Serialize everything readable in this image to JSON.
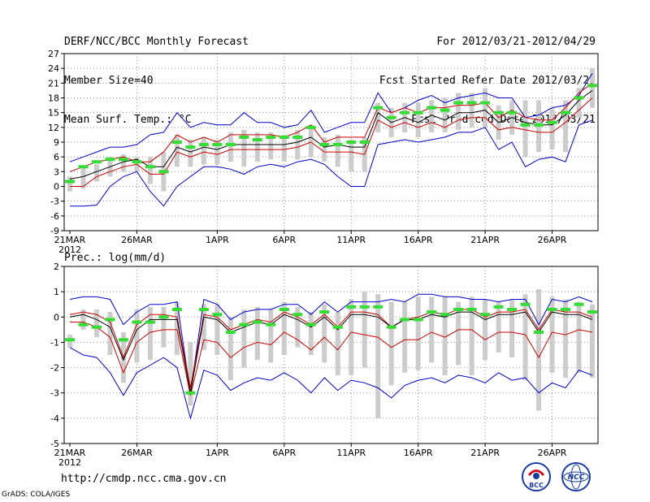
{
  "header": {
    "left": [
      "DERF/NCC/BCC Monthly Forecast",
      "Member Size=40",
      "Mean Surf. Temp.: °C"
    ],
    "right": [
      "For 2012/03/21-2012/04/29",
      "Fcst Started Refer Date 2012/03/20",
      "Fcst Produced Date 2012/03/21"
    ]
  },
  "footer": {
    "url": "http://cmdp.ncc.cma.gov.cn",
    "grads": "GrADS: COLA/IGES",
    "logo_bcc": "BCC",
    "logo_ncc": "NCC"
  },
  "colors": {
    "max_min": "#0000cc",
    "mean": "#000000",
    "band": "#cc0000",
    "box": "#cccccc",
    "obs": "#33dd33",
    "grid": "#888888"
  },
  "chart_data": [
    {
      "type": "line",
      "title": "Mean Surf. Temp.: °C",
      "xlabel": "",
      "ylabel": "",
      "days": 40,
      "ylim": [
        -9,
        27
      ],
      "yticks": [
        -9,
        -6,
        -3,
        0,
        3,
        6,
        9,
        12,
        15,
        18,
        21,
        24,
        27
      ],
      "xtick_labels": [
        {
          "day": 1,
          "label": "21MAR"
        },
        {
          "day": 6,
          "label": "26MAR"
        },
        {
          "day": 12,
          "label": "1APR"
        },
        {
          "day": 17,
          "label": "6APR"
        },
        {
          "day": 22,
          "label": "11APR"
        },
        {
          "day": 27,
          "label": "16APR"
        },
        {
          "day": 32,
          "label": "21APR"
        },
        {
          "day": 37,
          "label": "26APR"
        }
      ],
      "year_label": "2012",
      "max": [
        5,
        6,
        7,
        8,
        8,
        8.5,
        10.5,
        11,
        15,
        12,
        13,
        12.5,
        12.5,
        15,
        13,
        13,
        12,
        12.5,
        15.5,
        11,
        12,
        13,
        13,
        19,
        15,
        16,
        17.5,
        18.5,
        17,
        18,
        18.5,
        19,
        18,
        18,
        14,
        14.5,
        16,
        16.5,
        18.5,
        23
      ],
      "upper": [
        3,
        4,
        5,
        5.5,
        6,
        5,
        5,
        7,
        10.5,
        9,
        10,
        9,
        10.5,
        10.5,
        10.5,
        10.5,
        10,
        11,
        12.5,
        9,
        10,
        10,
        10,
        16,
        15,
        16,
        15,
        16,
        16,
        16.5,
        16.5,
        17,
        14,
        15.5,
        14,
        13.5,
        13.5,
        16,
        19,
        21
      ],
      "mean": [
        1.5,
        2,
        3,
        4,
        5,
        5.5,
        4,
        4,
        8,
        7,
        8,
        7.5,
        8.5,
        8.5,
        8.5,
        8.5,
        8.5,
        9,
        10,
        8,
        8.5,
        8,
        8,
        15,
        13,
        14,
        13,
        14.5,
        13.5,
        15,
        15,
        15.5,
        13,
        14,
        13,
        12.5,
        12.5,
        14.5,
        17.5,
        19.5
      ],
      "lower": [
        0,
        0,
        2,
        3,
        4,
        4.5,
        2.5,
        2.5,
        7,
        6,
        7,
        6.5,
        7.5,
        7.5,
        7.5,
        7.5,
        7.5,
        8,
        9,
        7,
        7,
        7,
        6.5,
        13.5,
        12,
        13,
        12,
        13,
        12,
        13.5,
        14,
        14,
        11.5,
        12,
        11.5,
        11,
        11,
        13,
        15.5,
        18
      ],
      "min": [
        -4,
        -4,
        -3.8,
        0,
        2,
        3,
        -1,
        -4,
        0,
        2,
        4,
        4,
        3.5,
        2.5,
        4,
        4.5,
        4,
        5,
        5.5,
        4.5,
        2,
        0,
        0,
        8.5,
        9,
        9.5,
        9,
        9.5,
        10,
        11,
        11,
        12,
        7.5,
        9,
        4,
        5.5,
        6,
        5,
        12.5,
        13.5
      ],
      "box_low": [
        -1,
        -0.5,
        1,
        2,
        3,
        3,
        0.5,
        -1,
        4,
        4,
        4.5,
        4.5,
        5,
        4,
        5,
        5.5,
        5,
        5.5,
        6,
        5,
        4,
        3,
        3,
        11,
        10,
        11,
        10,
        11,
        11,
        11.5,
        12,
        12,
        9.5,
        10.5,
        6,
        7,
        7.5,
        7,
        14,
        16
      ],
      "box_high": [
        2,
        4,
        4.5,
        6,
        6.5,
        6,
        6,
        7,
        10.5,
        9.5,
        10,
        9.5,
        11,
        11.5,
        11,
        11,
        10.5,
        11.5,
        12.5,
        10,
        10.5,
        9.5,
        10,
        17,
        16,
        17,
        17,
        17.5,
        18,
        19,
        19,
        20,
        16.5,
        17.5,
        17.5,
        17.5,
        16,
        17.5,
        20,
        24
      ],
      "obs": [
        1,
        4,
        5,
        5.5,
        5.5,
        5,
        4,
        3,
        9,
        8,
        8.5,
        8.5,
        8.5,
        10,
        9.5,
        10,
        10,
        10,
        12,
        8.5,
        8.5,
        9,
        9,
        16,
        14,
        15,
        15,
        16,
        15.5,
        17,
        17,
        17,
        15,
        15,
        12.5,
        12.5,
        13,
        15,
        18,
        20.5
      ]
    },
    {
      "type": "line",
      "title": "Prec.: log(mm/d)",
      "xlabel": "",
      "ylabel": "",
      "days": 40,
      "ylim": [
        -5,
        2
      ],
      "yticks": [
        -5,
        -4,
        -3,
        -2,
        -1,
        0,
        1,
        2
      ],
      "xtick_labels": [
        {
          "day": 1,
          "label": "21MAR"
        },
        {
          "day": 6,
          "label": "26MAR"
        },
        {
          "day": 12,
          "label": "1APR"
        },
        {
          "day": 17,
          "label": "6APR"
        },
        {
          "day": 22,
          "label": "11APR"
        },
        {
          "day": 27,
          "label": "16APR"
        },
        {
          "day": 32,
          "label": "21APR"
        },
        {
          "day": 37,
          "label": "26APR"
        }
      ],
      "year_label": "2012",
      "max": [
        0.7,
        0.8,
        0.8,
        0.7,
        -0.3,
        0.2,
        0.5,
        0.5,
        0.6,
        -3,
        0.7,
        0.5,
        -0.1,
        0.2,
        0.3,
        0.3,
        0.5,
        0.5,
        0.1,
        0.6,
        0.2,
        0.6,
        0.6,
        0.6,
        0.7,
        0.6,
        0.9,
        0.9,
        0.8,
        0.8,
        0.7,
        0.7,
        0.6,
        0.7,
        0.7,
        -0.3,
        0.7,
        0.6,
        0.8,
        0.6
      ],
      "upper": [
        0.1,
        0.2,
        0.1,
        -0.2,
        -1.6,
        -0.3,
        0.1,
        0.1,
        0,
        -2.8,
        0.1,
        0,
        -0.5,
        -0.3,
        -0.1,
        -0.2,
        0.2,
        0,
        -0.3,
        0.1,
        -0.4,
        0.2,
        0.2,
        0.1,
        -0.4,
        -0.1,
        0,
        0.2,
        0.1,
        0.3,
        0.3,
        0,
        0.2,
        0.2,
        0.3,
        -0.5,
        0.3,
        0.2,
        0.2,
        0
      ],
      "mean": [
        0,
        0.1,
        -0.1,
        -0.4,
        -1.7,
        -0.5,
        -0.1,
        -0.1,
        -0.1,
        -3,
        0,
        -0.1,
        -0.6,
        -0.4,
        -0.2,
        -0.3,
        0.1,
        -0.1,
        -0.4,
        0,
        -0.5,
        0.1,
        0.1,
        0,
        -0.4,
        -0.1,
        -0.1,
        0.1,
        0,
        0.2,
        0.2,
        -0.1,
        0.1,
        0.1,
        0.2,
        -0.6,
        0.2,
        0.1,
        0.1,
        -0.1
      ],
      "lower": [
        -0.2,
        -0.2,
        -0.4,
        -0.8,
        -2.2,
        -1,
        -0.6,
        -0.5,
        -0.5,
        -3.1,
        -0.9,
        -1,
        -1.6,
        -1.2,
        -1,
        -1.1,
        -0.6,
        -0.9,
        -1.3,
        -0.8,
        -1.3,
        -0.6,
        -0.7,
        -0.8,
        -1.2,
        -0.9,
        -0.9,
        -0.6,
        -0.8,
        -0.5,
        -0.5,
        -0.9,
        -0.6,
        -0.6,
        -0.7,
        -1.6,
        -0.6,
        -0.7,
        -0.5,
        -0.6
      ],
      "min": [
        -1.2,
        -1.5,
        -1.6,
        -2.2,
        -3.1,
        -2.2,
        -1.9,
        -1.6,
        -2,
        -4,
        -2.1,
        -2.3,
        -2.9,
        -2.6,
        -2.4,
        -2.5,
        -2.2,
        -2.5,
        -3,
        -2.4,
        -2.9,
        -2.5,
        -2.6,
        -2.8,
        -3.2,
        -2.7,
        -2.5,
        -2.4,
        -2.6,
        -2.3,
        -2.4,
        -2.6,
        -2.2,
        -2.5,
        -2.4,
        -3,
        -2.6,
        -2.8,
        -2.1,
        -2.3
      ],
      "box_low": [
        -1.2,
        -0.5,
        -0.8,
        -1.5,
        -2.6,
        -1.8,
        -1.7,
        -1.2,
        -1.5,
        -3.5,
        -1.3,
        -1.5,
        -2.5,
        -2,
        -1.7,
        -1.8,
        -1.5,
        -1.2,
        -1.5,
        -1.8,
        -2.3,
        -2.3,
        -2,
        -4,
        -2.7,
        -2.2,
        -2.1,
        -1.8,
        -2.3,
        -1.9,
        -2.3,
        -1.7,
        -1.4,
        -1.6,
        -2.5,
        -3.7,
        -2.2,
        -2.4,
        -2.2,
        -2.4
      ],
      "box_high": [
        -0.7,
        0.3,
        0.3,
        0.2,
        -0.6,
        0.3,
        0.4,
        0.4,
        0.6,
        -1,
        0.5,
        0.5,
        0,
        0.3,
        0.4,
        0.3,
        0.6,
        0.4,
        0.2,
        0.5,
        0.2,
        0.7,
        1,
        0.9,
        0.6,
        0.6,
        0.8,
        0.8,
        0.8,
        0.6,
        0.8,
        0.7,
        0.6,
        0.7,
        0.9,
        1.1,
        0.8,
        0.7,
        0.6,
        0.5
      ],
      "obs": [
        -0.9,
        -0.3,
        -0.4,
        -0.1,
        -0.9,
        -0.2,
        -0.2,
        0,
        0.3,
        -3,
        0.3,
        0.1,
        -0.6,
        -0.3,
        -0.2,
        -0.3,
        0.3,
        0.1,
        -0.3,
        0.2,
        -0.4,
        0.4,
        0.4,
        0.4,
        -0.4,
        -0.1,
        -0.1,
        0.2,
        0.1,
        0.3,
        0.3,
        0.1,
        0.4,
        0.3,
        0.5,
        -0.6,
        0.3,
        0.3,
        0.5,
        0.2
      ]
    }
  ]
}
